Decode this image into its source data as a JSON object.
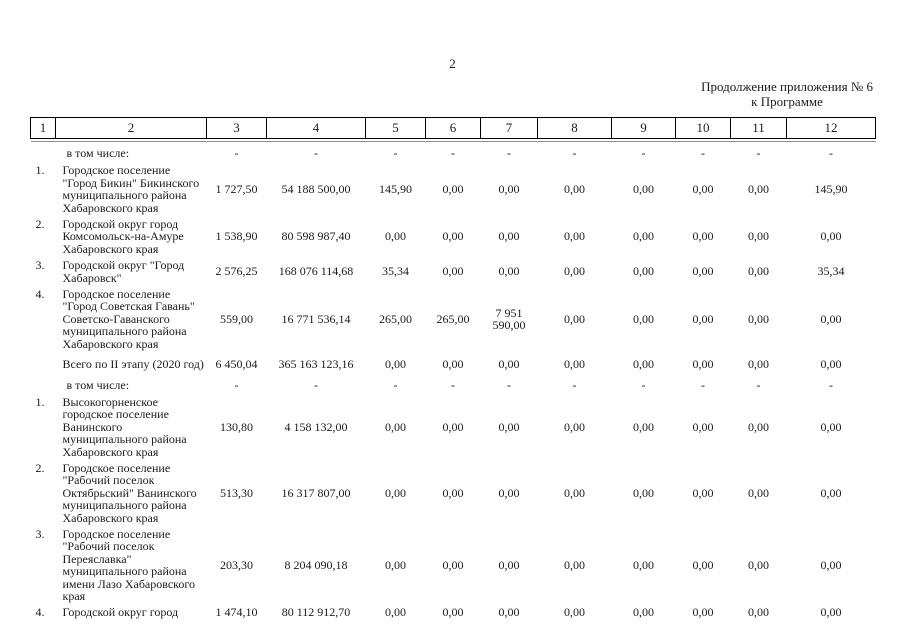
{
  "page": {
    "number": "2"
  },
  "header_note": {
    "line1": "Продолжение приложения № 6",
    "line2": "к Программе"
  },
  "table": {
    "columns": [
      "1",
      "2",
      "3",
      "4",
      "5",
      "6",
      "7",
      "8",
      "9",
      "10",
      "11",
      "12"
    ],
    "rows": [
      {
        "type": "subheader",
        "num": "",
        "name": "в том числе:",
        "values": [
          "-",
          "-",
          "-",
          "-",
          "-",
          "-",
          "-",
          "-",
          "-",
          "-"
        ]
      },
      {
        "type": "item",
        "num": "1.",
        "name": "Городское поселение\n\"Город Бикин\" Бикинского\nмуниципального района\nХабаровского края",
        "values": [
          "1 727,50",
          "54 188 500,00",
          "145,90",
          "0,00",
          "0,00",
          "0,00",
          "0,00",
          "0,00",
          "0,00",
          "145,90"
        ]
      },
      {
        "type": "item",
        "num": "2.",
        "name": "Городской округ город\nКомсомольск-на-Амуре\nХабаровского края",
        "values": [
          "1 538,90",
          "80 598 987,40",
          "0,00",
          "0,00",
          "0,00",
          "0,00",
          "0,00",
          "0,00",
          "0,00",
          "0,00"
        ]
      },
      {
        "type": "item",
        "num": "3.",
        "name": "Городской округ \"Город\nХабаровск\"",
        "values": [
          "2 576,25",
          "168 076 114,68",
          "35,34",
          "0,00",
          "0,00",
          "0,00",
          "0,00",
          "0,00",
          "0,00",
          "35,34"
        ]
      },
      {
        "type": "item",
        "num": "4.",
        "name": "Городское поселение\n\"Город Советская Гавань\"\nСоветско-Гаванского\nмуниципального района\nХабаровского края",
        "values": [
          "559,00",
          "16 771 536,14",
          "265,00",
          "265,00",
          "7 951\n590,00",
          "0,00",
          "0,00",
          "0,00",
          "0,00",
          "0,00"
        ]
      },
      {
        "type": "total",
        "num": "",
        "name": "Всего по II этапу (2020 год)",
        "values": [
          "6 450,04",
          "365 163 123,16",
          "0,00",
          "0,00",
          "0,00",
          "0,00",
          "0,00",
          "0,00",
          "0,00",
          "0,00"
        ]
      },
      {
        "type": "subheader",
        "num": "",
        "name": "в том числе:",
        "values": [
          "-",
          "-",
          "-",
          "-",
          "-",
          "-",
          "-",
          "-",
          "-",
          "-"
        ]
      },
      {
        "type": "item",
        "num": "1.",
        "name": "Высокогорненское\nгородское поселение\nВанинского\nмуниципального района\nХабаровского края",
        "values": [
          "130,80",
          "4 158 132,00",
          "0,00",
          "0,00",
          "0,00",
          "0,00",
          "0,00",
          "0,00",
          "0,00",
          "0,00"
        ]
      },
      {
        "type": "item",
        "num": "2.",
        "name": "Городское поселение\n\"Рабочий поселок\nОктябрьский\" Ванинского\nмуниципального района\nХабаровского края",
        "values": [
          "513,30",
          "16 317 807,00",
          "0,00",
          "0,00",
          "0,00",
          "0,00",
          "0,00",
          "0,00",
          "0,00",
          "0,00"
        ]
      },
      {
        "type": "item",
        "num": "3.",
        "name": "Городское поселение\n\"Рабочий поселок\nПереяславка\"\nмуниципального района\nимени Лазо Хабаровского\nкрая",
        "values": [
          "203,30",
          "8 204 090,18",
          "0,00",
          "0,00",
          "0,00",
          "0,00",
          "0,00",
          "0,00",
          "0,00",
          "0,00"
        ]
      },
      {
        "type": "item",
        "num": "4.",
        "name": "Городской округ город",
        "values": [
          "1 474,10",
          "80 112 912,70",
          "0,00",
          "0,00",
          "0,00",
          "0,00",
          "0,00",
          "0,00",
          "0,00",
          "0,00"
        ]
      }
    ]
  }
}
